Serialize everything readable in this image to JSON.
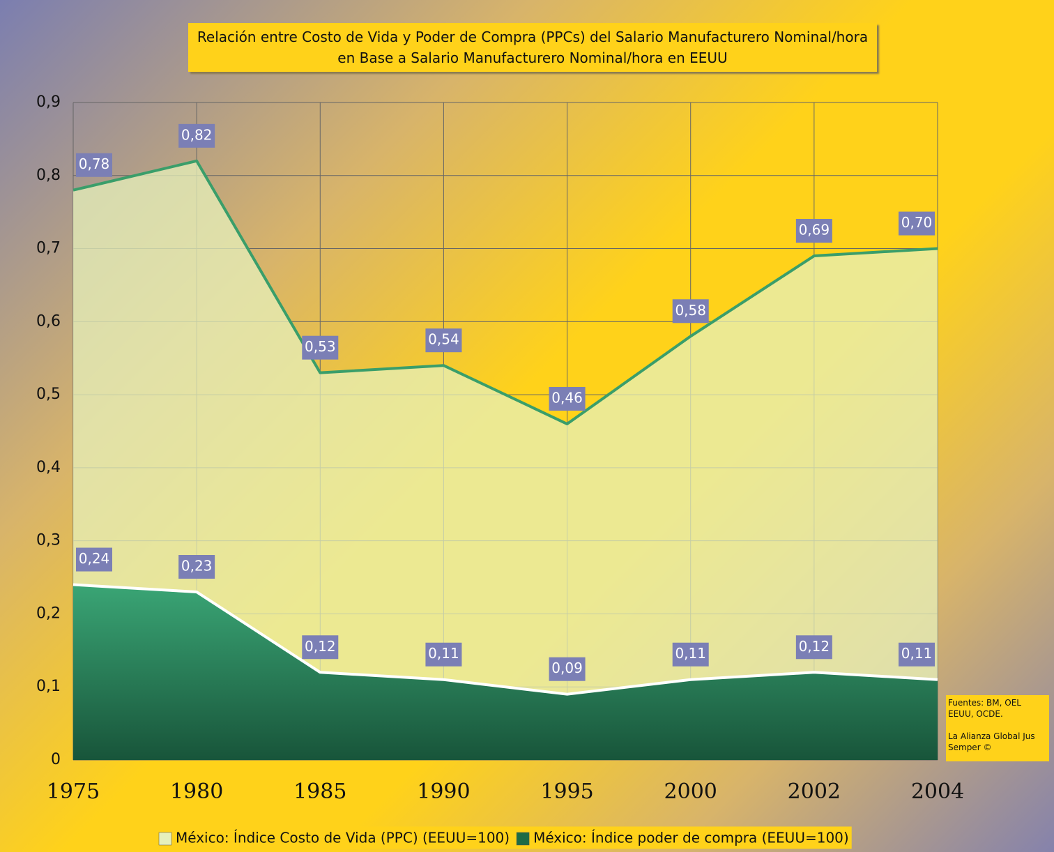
{
  "chart_data": {
    "type": "area",
    "title": "Relación entre Costo de Vida y Poder de Compra (PPCs) del Salario Manufacturero Nominal/hora en Base a Salario Manufacturero Nominal/hora en EEUU",
    "categories": [
      "1975",
      "1980",
      "1985",
      "1990",
      "1995",
      "2000",
      "2002",
      "2004"
    ],
    "series": [
      {
        "name": "México: Índice Costo de Vida (PPC) (EEUU=100)",
        "color": "#3a9e6a",
        "values": [
          0.78,
          0.82,
          0.53,
          0.54,
          0.46,
          0.58,
          0.69,
          0.7
        ],
        "value_labels": [
          "0,78",
          "0,82",
          "0,53",
          "0,54",
          "0,46",
          "0,58",
          "0,69",
          "0,70"
        ]
      },
      {
        "name": "México: Índice poder de compra (EEUU=100)",
        "color": "#1e6b45",
        "values": [
          0.24,
          0.23,
          0.12,
          0.11,
          0.09,
          0.11,
          0.12,
          0.11
        ],
        "value_labels": [
          "0,24",
          "0,23",
          "0,12",
          "0,11",
          "0,09",
          "0,11",
          "0,12",
          "0,11"
        ]
      }
    ],
    "ylim": [
      0,
      0.9
    ],
    "yticks": [
      0,
      {
        "value": 0.1,
        "label": "0,1"
      },
      {
        "value": 0.2,
        "label": "0,2"
      },
      {
        "value": 0.3,
        "label": "0,3"
      },
      {
        "value": 0.4,
        "label": "0,4"
      },
      {
        "value": 0.5,
        "label": "0,5"
      },
      {
        "value": 0.6,
        "label": "0,6"
      },
      {
        "value": 0.7,
        "label": "0,7"
      },
      {
        "value": 0.8,
        "label": "0,8"
      },
      {
        "value": 0.9,
        "label": "0,9"
      }
    ],
    "grid": true,
    "legend": "bottom",
    "annotations": [
      "Fuentes: BM, OEL EEUU, OCDE.",
      "La Alianza Global Jus Semper ©"
    ]
  }
}
